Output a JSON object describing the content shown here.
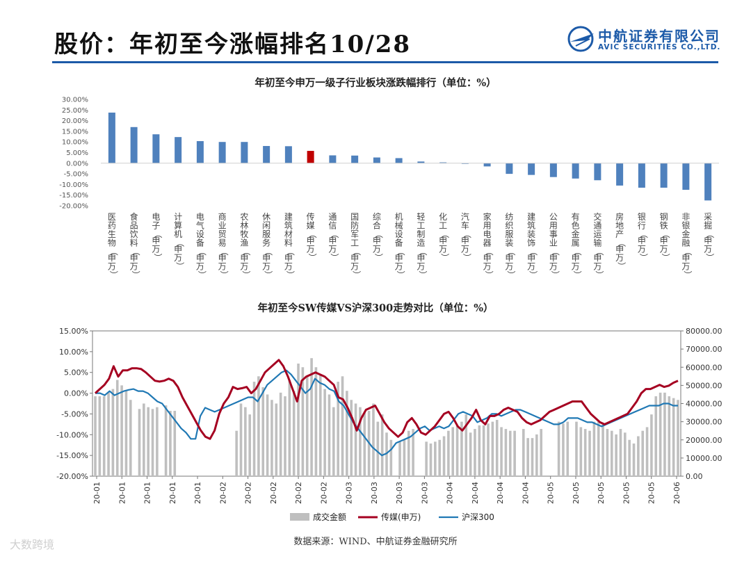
{
  "header": {
    "title": "股价：年初至今涨幅排名10/28",
    "brand_name": "中航证券有限公司",
    "brand_en": "AVIC SECURITIES CO.,LTD."
  },
  "colors": {
    "bar_blue": "#4f81bd",
    "bar_highlight": "#c00000",
    "media_line": "#a50021",
    "hs300_line": "#1f78b4",
    "volume_bar": "#bfbfbf",
    "rule": "#1c5aa8"
  },
  "chart_data": [
    {
      "type": "bar",
      "title": "年初至今申万一级子行业板块涨跌幅排行（单位：%）",
      "categories": [
        "医药生物(申万)",
        "食品饮料(申万)",
        "电子(申万)",
        "计算机(申万)",
        "电气设备(申万)",
        "商业贸易(申万)",
        "农林牧渔(申万)",
        "休闲服务(申万)",
        "建筑材料(申万)",
        "传媒(申万)",
        "通信(申万)",
        "国防军工(申万)",
        "综合(申万)",
        "机械设备(申万)",
        "轻工制造(申万)",
        "化工(申万)",
        "汽车(申万)",
        "家用电器(申万)",
        "纺织服装(申万)",
        "建筑装饰(申万)",
        "公用事业(申万)",
        "有色金属(申万)",
        "交通运输(申万)",
        "房地产(申万)",
        "银行(申万)",
        "钢铁(申万)",
        "非银金融(申万)",
        "采掘(申万)"
      ],
      "values": [
        23.8,
        17.0,
        13.6,
        12.3,
        10.4,
        10.0,
        10.0,
        8.1,
        8.0,
        5.8,
        3.7,
        3.6,
        2.7,
        2.4,
        0.8,
        0.4,
        -0.3,
        -1.5,
        -5.0,
        -5.5,
        -6.5,
        -7.2,
        -8.0,
        -10.5,
        -11.5,
        -11.5,
        -12.5,
        -17.5
      ],
      "highlight": "传媒(申万)",
      "y_ticks": [
        "30.00%",
        "25.00%",
        "20.00%",
        "15.00%",
        "10.00%",
        "5.00%",
        "0.00%",
        "-5.00%",
        "-10.00%",
        "-15.00%",
        "-20.00%"
      ],
      "ylim": [
        -20,
        30
      ]
    },
    {
      "type": "line",
      "title": "年初至今SW传媒VS沪深300走势对比（单位：%）",
      "x_tick_labels": [
        "20-01",
        "20-01",
        "20-01",
        "20-01",
        "20-01",
        "20-02",
        "20-02",
        "20-02",
        "20-02",
        "20-02",
        "20-03",
        "20-03",
        "20-03",
        "20-03",
        "20-04",
        "20-04",
        "20-04",
        "20-04",
        "20-05",
        "20-05",
        "20-05",
        "20-05",
        "20-05",
        "20-06"
      ],
      "y_left_ticks": [
        "15.00%",
        "10.00%",
        "5.00%",
        "0.00%",
        "-5.00%",
        "-10.00%",
        "-15.00%",
        "-20.00%"
      ],
      "y_right_ticks": [
        "80000.00",
        "70000.00",
        "60000.00",
        "50000.00",
        "40000.00",
        "30000.00",
        "20000.00",
        "10000.00",
        "0.00"
      ],
      "ylim_left": [
        -20,
        15
      ],
      "ylim_right": [
        0,
        80000
      ],
      "series": [
        {
          "name": "成交金额",
          "kind": "bar",
          "axis": "right",
          "values": [
            44000,
            44000,
            44000,
            46000,
            48000,
            53000,
            50000,
            47000,
            42000,
            null,
            37000,
            40000,
            38000,
            37000,
            38000,
            null,
            39000,
            36000,
            36000,
            null,
            null,
            null,
            null,
            null,
            null,
            null,
            null,
            null,
            null,
            null,
            null,
            null,
            25000,
            40000,
            38000,
            34000,
            52000,
            55000,
            49000,
            45000,
            42000,
            40000,
            46000,
            44000,
            53000,
            47000,
            62000,
            60000,
            55000,
            65000,
            60000,
            56000,
            48000,
            45000,
            38000,
            52000,
            55000,
            47000,
            42000,
            40000,
            38000,
            35000,
            36000,
            40000,
            30000,
            34000,
            24000,
            20000,
            null,
            19000,
            20000,
            25000,
            26000,
            null,
            null,
            19000,
            18000,
            19000,
            20000,
            22000,
            25000,
            27000,
            28000,
            30000,
            34000,
            24000,
            26000,
            28000,
            28000,
            29000,
            30000,
            31000,
            27000,
            26000,
            25000,
            25000,
            null,
            26000,
            21000,
            21000,
            23000,
            26000,
            null,
            null,
            null,
            30000,
            29000,
            30000,
            null,
            30000,
            27000,
            26000,
            25000,
            30000,
            30000,
            29000,
            26000,
            25000,
            23000,
            26000,
            24000,
            20000,
            18000,
            22000,
            25000,
            27000,
            34000,
            44000,
            46000,
            46000,
            44000,
            43000,
            42000
          ]
        },
        {
          "name": "传媒(申万)",
          "kind": "line",
          "axis": "left",
          "values": [
            0.0,
            1.0,
            2.0,
            3.5,
            6.5,
            4.0,
            5.5,
            5.5,
            6.0,
            6.0,
            5.8,
            5.0,
            4.0,
            3.0,
            2.8,
            3.0,
            3.5,
            3.0,
            1.5,
            -1.0,
            -3.0,
            -5.0,
            -7.0,
            -9.0,
            -10.5,
            -11.0,
            -9.0,
            -5.0,
            -2.5,
            -1.0,
            1.5,
            1.0,
            1.2,
            1.5,
            0.0,
            1.0,
            3.0,
            5.0,
            6.0,
            7.0,
            8.0,
            6.5,
            4.0,
            1.0,
            -2.0,
            3.0,
            4.0,
            4.5,
            5.0,
            4.5,
            4.0,
            3.0,
            2.0,
            -1.0,
            -1.5,
            -3.5,
            -6.0,
            -9.0,
            -6.0,
            -4.0,
            -3.5,
            -3.0,
            -5.0,
            -7.0,
            -8.5,
            -9.5,
            -10.5,
            -9.5,
            -7.0,
            -6.0,
            -7.5,
            -9.5,
            -10.0,
            -9.0,
            -8.0,
            -6.5,
            -5.0,
            -4.5,
            -6.0,
            -8.0,
            -9.0,
            -7.5,
            -6.0,
            -4.0,
            -6.5,
            -7.5,
            -5.5,
            -5.5,
            -5.0,
            -4.0,
            -3.5,
            -4.0,
            -4.5,
            -6.0,
            -7.0,
            -7.5,
            -7.0,
            -6.5,
            -5.5,
            -4.5,
            -4.0,
            -3.5,
            -3.0,
            -2.5,
            -2.0,
            -2.0,
            -2.0,
            -3.5,
            -5.0,
            -6.0,
            -7.0,
            -7.5,
            -7.0,
            -6.5,
            -6.0,
            -5.5,
            -5.0,
            -3.5,
            -2.0,
            0.0,
            1.0,
            1.0,
            1.5,
            2.0,
            1.5,
            1.8,
            2.5,
            3.0
          ]
        },
        {
          "name": "沪深300",
          "kind": "line",
          "axis": "left",
          "values": [
            0.0,
            0.0,
            -0.5,
            0.5,
            -0.5,
            0.0,
            0.5,
            0.8,
            1.0,
            0.5,
            0.5,
            0.0,
            -1.0,
            -2.0,
            -2.5,
            -4.0,
            -5.5,
            -7.0,
            -8.5,
            -9.5,
            -11.0,
            -11.0,
            -5.5,
            -3.5,
            -4.0,
            -4.5,
            -4.0,
            -3.5,
            -3.0,
            -2.5,
            -2.0,
            -1.5,
            -1.0,
            -1.0,
            -2.0,
            0.0,
            2.0,
            3.0,
            4.0,
            5.0,
            5.5,
            4.5,
            3.0,
            1.5,
            0.0,
            1.0,
            3.5,
            2.5,
            2.0,
            1.0,
            0.5,
            -2.0,
            -3.0,
            -5.0,
            -7.0,
            -8.5,
            -10.0,
            -11.5,
            -13.0,
            -14.0,
            -15.0,
            -14.5,
            -13.5,
            -12.0,
            -11.5,
            -11.0,
            -10.5,
            -9.5,
            -8.5,
            -8.0,
            -9.0,
            -8.5,
            -8.0,
            -8.5,
            -8.0,
            -6.5,
            -5.0,
            -4.5,
            -5.0,
            -5.5,
            -7.0,
            -6.5,
            -6.0,
            -5.0,
            -5.0,
            -5.5,
            -5.0,
            -4.5,
            -4.0,
            -4.0,
            -4.5,
            -5.0,
            -5.5,
            -6.0,
            -6.5,
            -7.0,
            -7.5,
            -7.5,
            -7.0,
            -6.0,
            -6.0,
            -6.0,
            -6.5,
            -7.0,
            -7.0,
            -7.5,
            -8.0,
            -7.5,
            -7.0,
            -6.5,
            -6.0,
            -5.5,
            -5.0,
            -4.5,
            -4.0,
            -3.5,
            -3.0,
            -3.0,
            -3.0,
            -2.5,
            -2.5,
            -3.0,
            -3.0
          ]
        }
      ]
    }
  ],
  "footer": {
    "source": "数据来源：WIND、中航证券金融研究所",
    "watermark": "大数跨境"
  }
}
